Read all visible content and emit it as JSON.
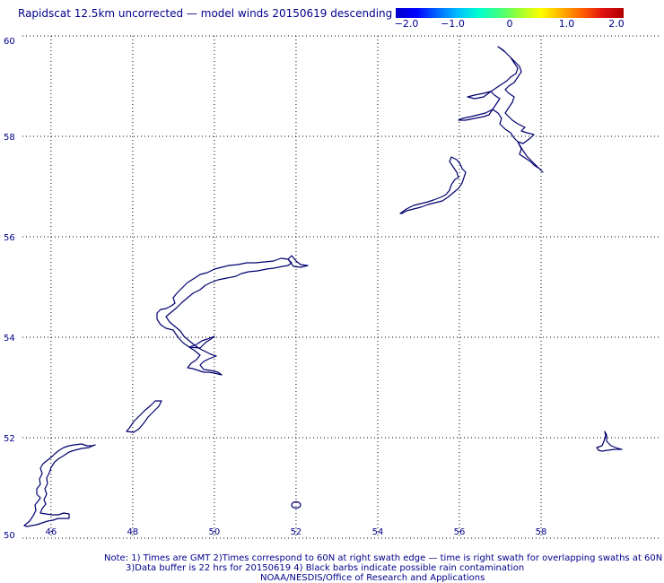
{
  "title": "Rapidscat 12.5km uncorrected — model winds 20150619 descending",
  "colorbar": {
    "ticks": [
      "−2.0",
      "−1.0",
      "0",
      "1.0",
      "2.0"
    ],
    "tick_values": [
      -2.0,
      -1.0,
      0.0,
      1.0,
      2.0
    ],
    "colors": [
      "#0000cc",
      "#0000ff",
      "#0066ff",
      "#00bfff",
      "#00ffd0",
      "#40ff80",
      "#a0ff30",
      "#ffff00",
      "#ffb000",
      "#ff6000",
      "#e01010",
      "#b00000"
    ]
  },
  "map": {
    "lon_range": [
      45.3,
      60.9
    ],
    "lat_range": [
      50.0,
      60.0
    ],
    "lon_ticks": [
      46,
      48,
      50,
      52,
      54,
      56,
      58
    ],
    "lat_ticks": [
      50,
      52,
      54,
      56,
      58,
      60
    ],
    "lon_tick_labels": [
      "46",
      "48",
      "50",
      "52",
      "54",
      "56",
      "58"
    ],
    "lat_tick_labels": [
      "50",
      "52",
      "54",
      "56",
      "58",
      "60"
    ],
    "grid": true,
    "coastline_color": "#00006e"
  },
  "notes": {
    "line1": "Note: 1) Times are GMT 2)Times correspond to 60N at right swath edge — time is right swath for overlapping swaths at 60N",
    "line2": "3)Data buffer is 22 hrs for 20150619 4) Black barbs indicate possible rain contamination",
    "line3": "NOAA/NESDIS/Office of Research and Applications"
  }
}
